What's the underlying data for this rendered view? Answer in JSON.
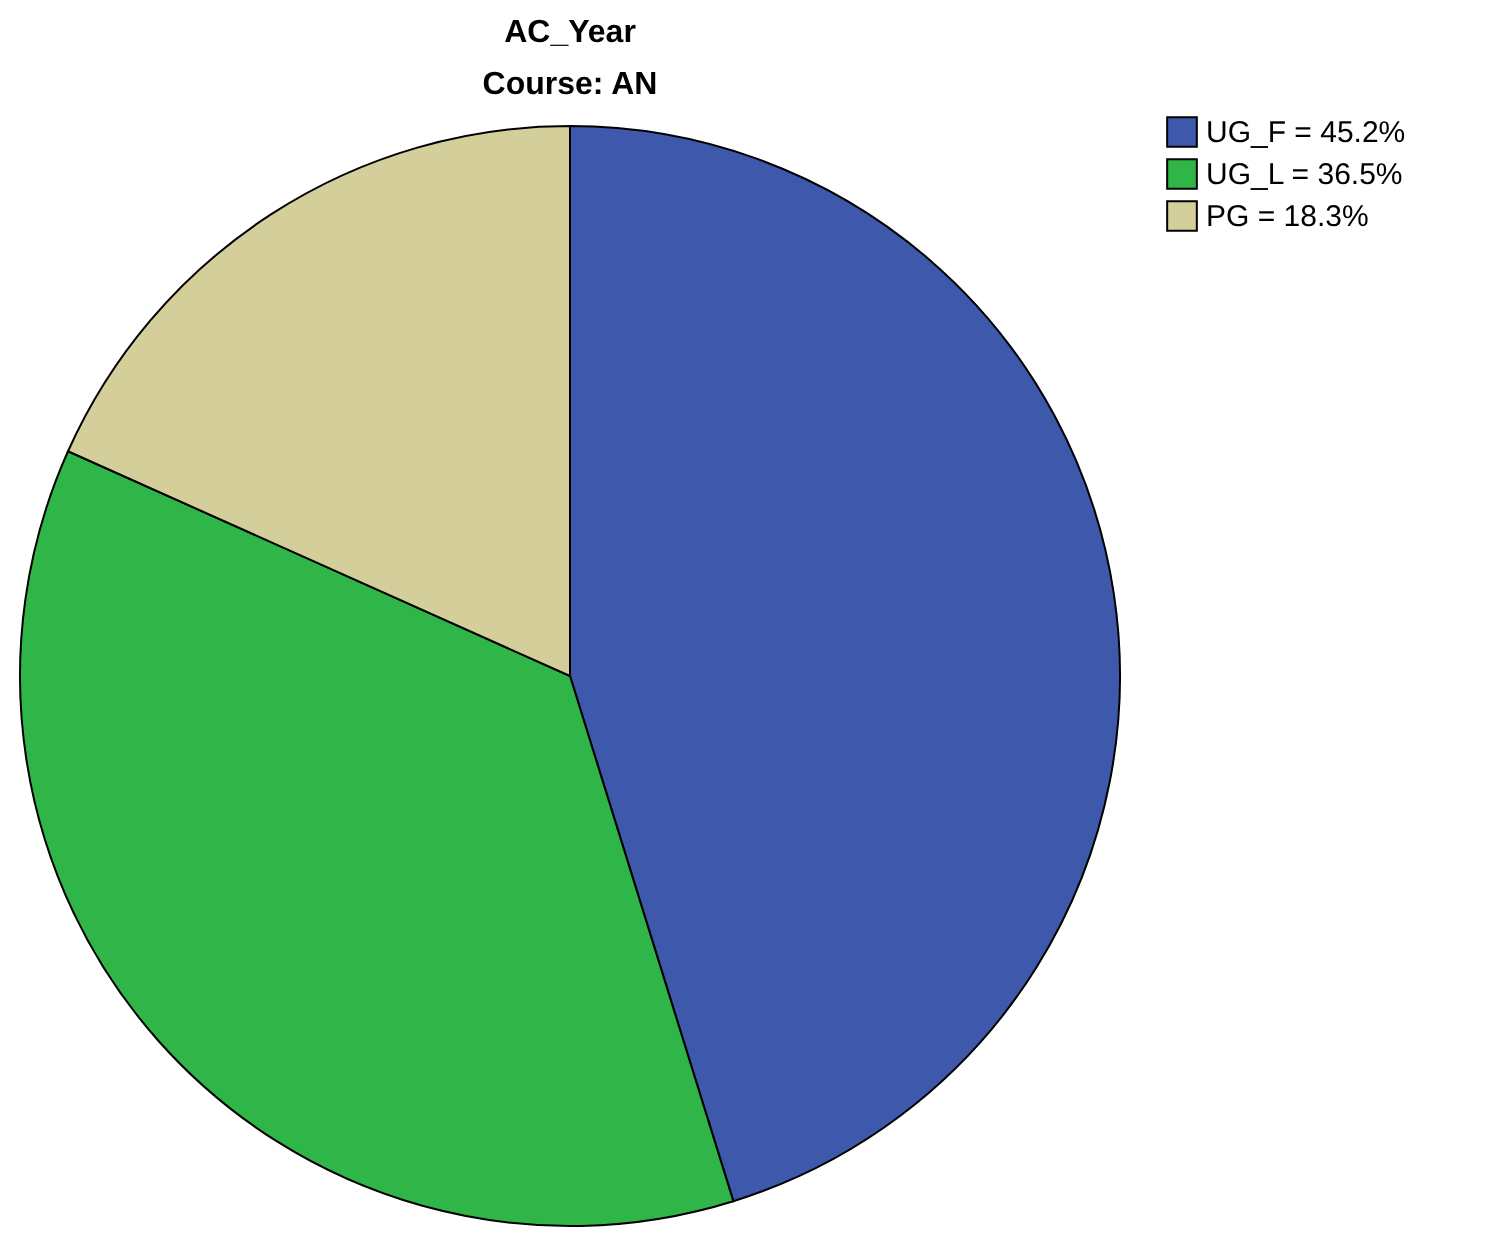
{
  "chart_data": {
    "type": "pie",
    "title": "AC_Year",
    "subtitle": "Course: AN",
    "categories": [
      "UG_F = 45.2%",
      "UG_L = 36.5%",
      "PG = 18.3%"
    ],
    "values": [
      45.2,
      36.5,
      18.3
    ],
    "colors": [
      "#3e58ac",
      "#2fb548",
      "#d4ce9a"
    ],
    "legend": "top right"
  }
}
